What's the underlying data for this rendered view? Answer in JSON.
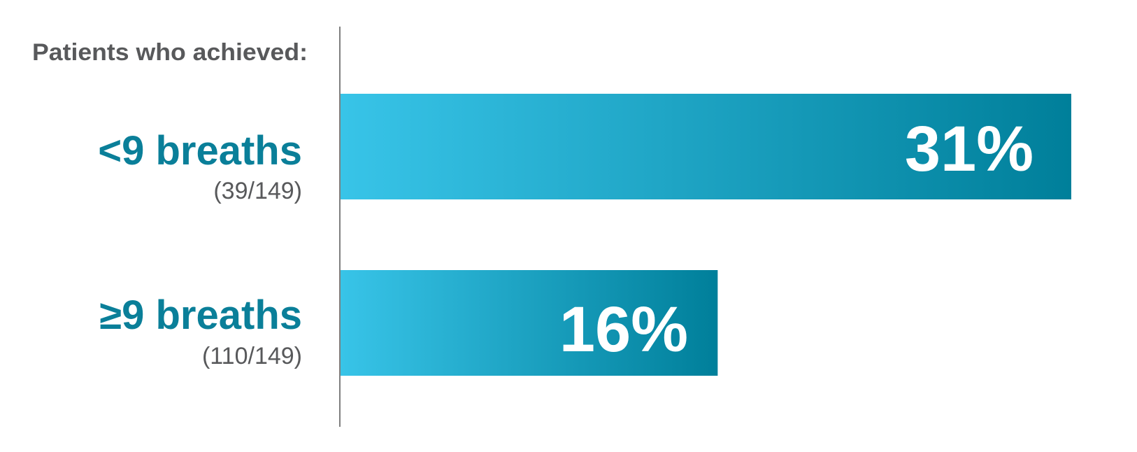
{
  "chart_data": {
    "type": "bar",
    "orientation": "horizontal",
    "title": "Patients who achieved:",
    "categories": [
      "<9 breaths",
      "≥9 breaths"
    ],
    "category_counts": [
      "(39/149)",
      "(110/149)"
    ],
    "values": [
      31,
      16
    ],
    "value_labels": [
      "31%",
      "16%"
    ],
    "unit": "%",
    "xlim": [
      0,
      31
    ],
    "grid": false,
    "colors": {
      "bar_start": "#38c4e8",
      "bar_end": "#007f9a",
      "category_text": "#0a7f99",
      "gray_text": "#58595b",
      "axis": "#555555"
    }
  }
}
